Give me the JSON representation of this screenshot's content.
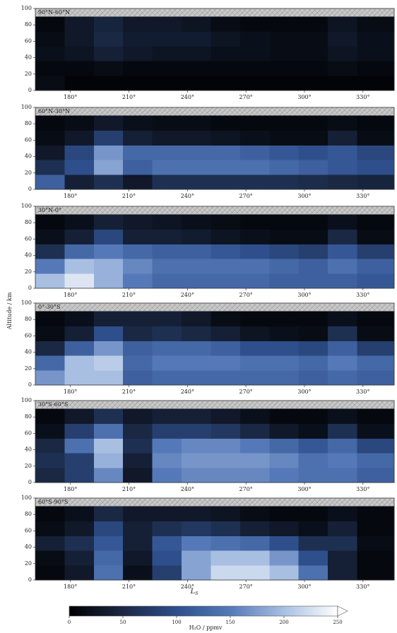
{
  "chart_data": [
    {
      "type": "heatmap",
      "title": "90°N-60°N",
      "xlim": [
        162,
        346
      ],
      "ylim": [
        0,
        100
      ],
      "xticks": [
        {
          "value": 180,
          "label": "180°"
        },
        {
          "value": 210,
          "label": "210°"
        },
        {
          "value": 240,
          "label": "240°"
        },
        {
          "value": 270,
          "label": "270°"
        },
        {
          "value": 300,
          "label": "300°"
        },
        {
          "value": 330,
          "label": "330°"
        }
      ],
      "yticks": [
        0,
        20,
        40,
        60,
        80,
        100
      ],
      "x_edges": [
        162,
        177,
        192,
        207,
        222,
        237,
        252,
        267,
        282,
        297,
        312,
        327,
        346
      ],
      "y_edges": [
        0,
        18,
        36,
        54,
        72,
        90
      ],
      "z": [
        [
          15,
          5,
          5,
          5,
          5,
          5,
          5,
          5,
          5,
          5,
          5,
          5
        ],
        [
          10,
          10,
          15,
          10,
          10,
          10,
          10,
          10,
          10,
          10,
          15,
          10
        ],
        [
          20,
          25,
          40,
          30,
          25,
          25,
          20,
          20,
          15,
          15,
          25,
          20
        ],
        [
          15,
          30,
          50,
          35,
          35,
          35,
          25,
          20,
          15,
          15,
          30,
          20
        ],
        [
          10,
          30,
          45,
          30,
          30,
          25,
          15,
          10,
          10,
          10,
          25,
          15
        ]
      ]
    },
    {
      "type": "heatmap",
      "title": "60°N-30°N",
      "xlim": [
        162,
        346
      ],
      "ylim": [
        0,
        100
      ],
      "xticks": [
        {
          "value": 180,
          "label": "180°"
        },
        {
          "value": 210,
          "label": "210°"
        },
        {
          "value": 240,
          "label": "240°"
        },
        {
          "value": 270,
          "label": "270°"
        },
        {
          "value": 300,
          "label": "300°"
        },
        {
          "value": 330,
          "label": "330°"
        }
      ],
      "yticks": [
        0,
        20,
        40,
        60,
        80,
        100
      ],
      "x_edges": [
        162,
        177,
        192,
        207,
        222,
        237,
        252,
        267,
        282,
        297,
        312,
        327,
        346
      ],
      "y_edges": [
        0,
        18,
        36,
        54,
        72,
        90
      ],
      "z": [
        [
          120,
          40,
          60,
          30,
          60,
          60,
          60,
          60,
          60,
          55,
          50,
          45
        ],
        [
          60,
          100,
          180,
          120,
          140,
          140,
          140,
          140,
          130,
          120,
          110,
          100
        ],
        [
          30,
          90,
          170,
          130,
          130,
          130,
          130,
          120,
          110,
          100,
          110,
          90
        ],
        [
          15,
          30,
          80,
          40,
          30,
          30,
          25,
          20,
          15,
          15,
          40,
          15
        ],
        [
          10,
          15,
          30,
          20,
          15,
          15,
          10,
          10,
          10,
          10,
          15,
          10
        ]
      ]
    },
    {
      "type": "heatmap",
      "title": "30°N-0°",
      "xlim": [
        162,
        346
      ],
      "ylim": [
        0,
        100
      ],
      "xticks": [
        {
          "value": 180,
          "label": "180°"
        },
        {
          "value": 210,
          "label": "210°"
        },
        {
          "value": 240,
          "label": "240°"
        },
        {
          "value": 270,
          "label": "270°"
        },
        {
          "value": 300,
          "label": "300°"
        },
        {
          "value": 330,
          "label": "330°"
        }
      ],
      "yticks": [
        0,
        20,
        40,
        60,
        80,
        100
      ],
      "x_edges": [
        162,
        177,
        192,
        207,
        222,
        237,
        252,
        267,
        282,
        297,
        312,
        327,
        346
      ],
      "y_edges": [
        0,
        18,
        36,
        54,
        72,
        90
      ],
      "z": [
        [
          200,
          230,
          190,
          150,
          130,
          130,
          130,
          130,
          120,
          120,
          120,
          110
        ],
        [
          150,
          200,
          190,
          160,
          140,
          140,
          140,
          140,
          130,
          120,
          140,
          120
        ],
        [
          60,
          130,
          150,
          130,
          120,
          120,
          110,
          100,
          90,
          80,
          110,
          80
        ],
        [
          20,
          40,
          90,
          40,
          40,
          35,
          25,
          20,
          15,
          15,
          50,
          15
        ],
        [
          10,
          20,
          40,
          30,
          25,
          20,
          15,
          10,
          10,
          10,
          20,
          10
        ]
      ]
    },
    {
      "type": "heatmap",
      "title": "0°-30°S",
      "xlim": [
        162,
        346
      ],
      "ylim": [
        0,
        100
      ],
      "xticks": [
        {
          "value": 180,
          "label": "180°"
        },
        {
          "value": 210,
          "label": "210°"
        },
        {
          "value": 240,
          "label": "240°"
        },
        {
          "value": 270,
          "label": "270°"
        },
        {
          "value": 300,
          "label": "300°"
        },
        {
          "value": 330,
          "label": "330°"
        }
      ],
      "yticks": [
        0,
        20,
        40,
        60,
        80,
        100
      ],
      "x_edges": [
        162,
        177,
        192,
        207,
        222,
        237,
        252,
        267,
        282,
        297,
        312,
        327,
        346
      ],
      "y_edges": [
        0,
        18,
        36,
        54,
        72,
        90
      ],
      "z": [
        [
          170,
          200,
          200,
          120,
          130,
          130,
          130,
          130,
          130,
          120,
          130,
          120
        ],
        [
          130,
          200,
          210,
          130,
          150,
          150,
          150,
          140,
          140,
          130,
          150,
          130
        ],
        [
          50,
          120,
          170,
          120,
          130,
          130,
          120,
          100,
          100,
          90,
          120,
          80
        ],
        [
          15,
          40,
          100,
          50,
          60,
          50,
          40,
          25,
          20,
          15,
          60,
          15
        ],
        [
          10,
          20,
          40,
          40,
          40,
          30,
          15,
          10,
          10,
          10,
          20,
          10
        ]
      ]
    },
    {
      "type": "heatmap",
      "title": "30°S-60°S",
      "xlim": [
        162,
        346
      ],
      "ylim": [
        0,
        100
      ],
      "xticks": [
        {
          "value": 180,
          "label": "180°"
        },
        {
          "value": 210,
          "label": "210°"
        },
        {
          "value": 240,
          "label": "240°"
        },
        {
          "value": 270,
          "label": "270°"
        },
        {
          "value": 300,
          "label": "300°"
        },
        {
          "value": 330,
          "label": "330°"
        }
      ],
      "yticks": [
        0,
        20,
        40,
        60,
        80,
        100
      ],
      "x_edges": [
        162,
        177,
        192,
        207,
        222,
        237,
        252,
        267,
        282,
        297,
        312,
        327,
        346
      ],
      "y_edges": [
        0,
        18,
        36,
        54,
        72,
        90
      ],
      "z": [
        [
          50,
          80,
          160,
          30,
          150,
          160,
          160,
          160,
          150,
          140,
          140,
          120
        ],
        [
          60,
          80,
          190,
          40,
          160,
          170,
          170,
          170,
          160,
          140,
          150,
          130
        ],
        [
          50,
          140,
          200,
          60,
          150,
          160,
          160,
          150,
          130,
          110,
          130,
          90
        ],
        [
          20,
          80,
          140,
          50,
          80,
          80,
          70,
          50,
          30,
          20,
          60,
          20
        ],
        [
          10,
          30,
          60,
          30,
          40,
          40,
          30,
          20,
          10,
          10,
          20,
          10
        ]
      ]
    },
    {
      "type": "heatmap",
      "title": "60°S-90°S",
      "xlim": [
        162,
        346
      ],
      "ylim": [
        0,
        100
      ],
      "xticks": [
        {
          "value": 180,
          "label": "180°"
        },
        {
          "value": 210,
          "label": "210°"
        },
        {
          "value": 240,
          "label": "240°"
        },
        {
          "value": 270,
          "label": "270°"
        },
        {
          "value": 300,
          "label": "300°"
        },
        {
          "value": 330,
          "label": "330°"
        }
      ],
      "yticks": [
        0,
        20,
        40,
        60,
        80,
        100
      ],
      "x_edges": [
        162,
        177,
        192,
        207,
        222,
        237,
        252,
        267,
        282,
        297,
        312,
        327,
        346
      ],
      "y_edges": [
        0,
        18,
        36,
        54,
        72,
        90
      ],
      "z": [
        [
          10,
          30,
          140,
          20,
          80,
          180,
          220,
          220,
          200,
          140,
          40,
          10
        ],
        [
          15,
          40,
          130,
          30,
          100,
          180,
          200,
          200,
          170,
          100,
          40,
          10
        ],
        [
          40,
          60,
          110,
          40,
          110,
          150,
          140,
          130,
          100,
          60,
          60,
          15
        ],
        [
          15,
          30,
          90,
          40,
          60,
          70,
          60,
          40,
          30,
          20,
          40,
          10
        ],
        [
          10,
          20,
          50,
          30,
          30,
          30,
          25,
          15,
          10,
          10,
          20,
          10
        ]
      ]
    }
  ],
  "ylabel": "Altitude / km",
  "xlabel": "L",
  "xlabel_sub": "S",
  "colorbar": {
    "label": "H₂O / ppmv",
    "lim": [
      0,
      250
    ],
    "ticks": [
      0,
      50,
      100,
      150,
      200,
      250
    ],
    "colormap": [
      "#000000",
      "#1a2844",
      "#2e4f8c",
      "#5579b8",
      "#a9bfe2",
      "#ffffff"
    ]
  }
}
